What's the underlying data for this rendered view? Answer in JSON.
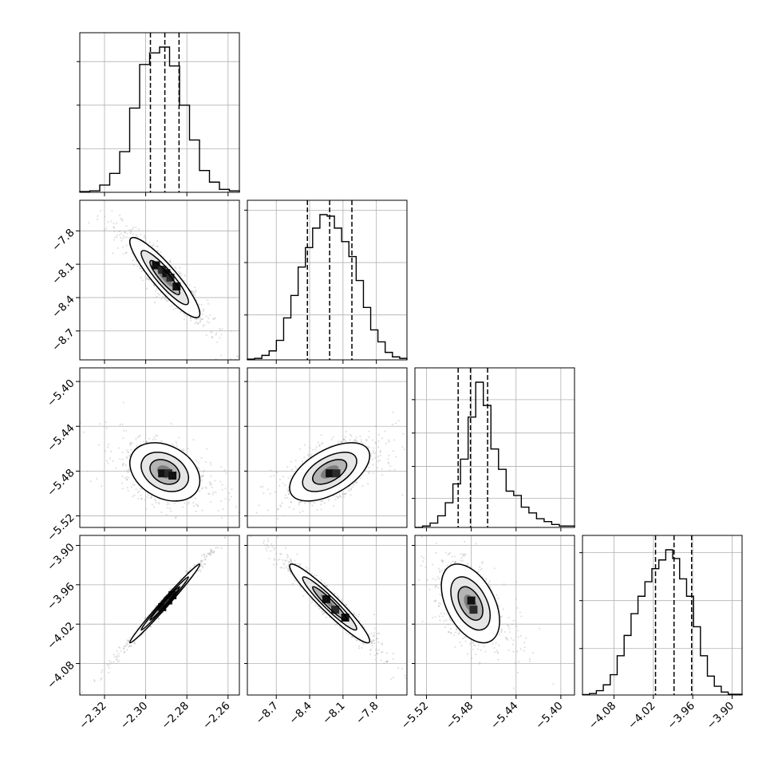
{
  "chart_data": {
    "type": "corner",
    "parameters": [
      {
        "index": 0,
        "range": [
          -2.332,
          -2.2545
        ],
        "ticks": [
          -2.32,
          -2.3,
          -2.28,
          -2.26
        ],
        "tick_labels": [
          "−2.32",
          "−2.30",
          "−2.28",
          "−2.26"
        ],
        "quantiles": [
          -2.2977,
          -2.2907,
          -2.2838
        ],
        "hist": [
          0.5,
          1,
          5,
          13,
          28,
          58,
          88,
          96,
          100,
          87,
          60,
          36,
          15,
          7,
          2,
          1
        ],
        "hist_ticks": [
          30,
          60,
          90
        ]
      },
      {
        "index": 1,
        "range": [
          -8.96,
          -7.525
        ],
        "ticks": [
          -8.7,
          -8.4,
          -8.1,
          -7.8
        ],
        "tick_labels": [
          "−8.7",
          "−8.4",
          "−8.1",
          "−7.8"
        ],
        "quantiles": [
          -8.42,
          -8.22,
          -8.02
        ],
        "hist": [
          0.5,
          1,
          3,
          6,
          13,
          28,
          43,
          62,
          75,
          88,
          97,
          96,
          88,
          79,
          69,
          53,
          35,
          20,
          12,
          5,
          2,
          1
        ],
        "hist_ticks": [
          30,
          65,
          100
        ]
      },
      {
        "index": 2,
        "range": [
          -5.5303,
          -5.3878
        ],
        "ticks": [
          -5.52,
          -5.48,
          -5.44,
          -5.4
        ],
        "tick_labels": [
          "−5.52",
          "−5.48",
          "−5.44",
          "−5.40"
        ],
        "quantiles": [
          -5.4917,
          -5.4807,
          -5.4654
        ],
        "hist": [
          0,
          1,
          3,
          8,
          17,
          30,
          47,
          76,
          100,
          84,
          54,
          40,
          25,
          22,
          14,
          10,
          6,
          4,
          2,
          1,
          1
        ],
        "hist_ticks": [
          20,
          42,
          65,
          88
        ]
      },
      {
        "index": 3,
        "range": [
          -4.128,
          -3.8848
        ],
        "ticks": [
          -4.08,
          -4.02,
          -3.96,
          -3.9
        ],
        "tick_labels": [
          "−4.08",
          "−4.02",
          "−3.96",
          "−3.90"
        ],
        "quantiles": [
          -4.0167,
          -3.9885,
          -3.9617
        ],
        "hist": [
          0.3,
          1,
          3,
          7,
          14,
          27,
          41,
          56,
          68,
          78,
          87,
          93,
          100,
          94,
          80,
          68,
          47,
          27,
          13,
          6,
          2,
          0.5,
          0.5
        ],
        "hist_ticks": [
          32,
          65,
          98
        ]
      }
    ],
    "pairs": [
      {
        "row": 1,
        "col": 0,
        "center": [
          -2.2907,
          -8.22
        ],
        "sigma": [
          0.0085,
          0.18
        ],
        "rho": -0.9,
        "peaks": [
          [
            -2.295,
            -8.11
          ],
          [
            -2.292,
            -8.15
          ],
          [
            -2.29,
            -8.18
          ],
          [
            -2.288,
            -8.22
          ],
          [
            -2.285,
            -8.3
          ]
        ]
      },
      {
        "row": 2,
        "col": 0,
        "center": [
          -2.2907,
          -5.4807
        ],
        "sigma": [
          0.0085,
          0.013
        ],
        "rho": -0.3,
        "peaks": [
          [
            -2.292,
            -5.482
          ],
          [
            -2.289,
            -5.482
          ],
          [
            -2.287,
            -5.484
          ]
        ]
      },
      {
        "row": 2,
        "col": 1,
        "center": [
          -8.22,
          -5.4807
        ],
        "sigma": [
          0.18,
          0.013
        ],
        "rho": 0.55,
        "peaks": [
          [
            -8.22,
            -5.482
          ],
          [
            -8.16,
            -5.482
          ]
        ]
      },
      {
        "row": 3,
        "col": 0,
        "center": [
          -2.2907,
          -3.9885
        ],
        "sigma": [
          0.0085,
          0.03
        ],
        "rho": 0.99,
        "peaks": [
          [
            -2.292,
            -3.994
          ],
          [
            -2.289,
            -3.984
          ],
          [
            -2.287,
            -3.976
          ]
        ]
      },
      {
        "row": 3,
        "col": 1,
        "center": [
          -8.22,
          -3.9885
        ],
        "sigma": [
          0.18,
          0.03
        ],
        "rho": -0.95,
        "peaks": [
          [
            -8.25,
            -3.982
          ],
          [
            -8.17,
            -3.998
          ],
          [
            -8.08,
            -4.01
          ]
        ]
      },
      {
        "row": 3,
        "col": 2,
        "center": [
          -5.4807,
          -3.9885
        ],
        "sigma": [
          0.013,
          0.03
        ],
        "rho": -0.45,
        "peaks": [
          [
            -5.48,
            -3.984
          ],
          [
            -5.478,
            -3.998
          ]
        ]
      }
    ],
    "grid": true
  }
}
